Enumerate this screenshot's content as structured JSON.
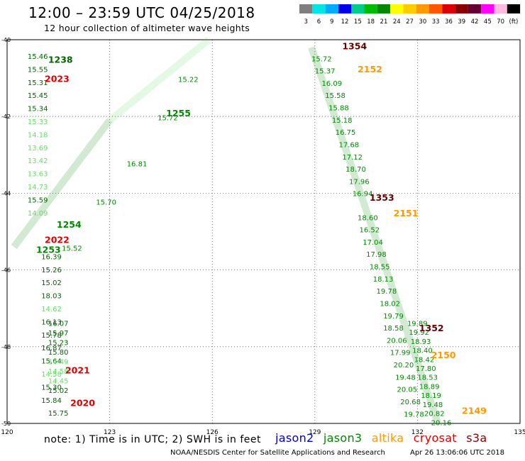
{
  "header": {
    "title": "12:00 – 23:59 UTC 04/25/2018",
    "subtitle": "12 hour collection of altimeter wave heights"
  },
  "colorbar": {
    "labels": [
      "3",
      "6",
      "9",
      "12",
      "15",
      "18",
      "21",
      "24",
      "27",
      "30",
      "33",
      "36",
      "39",
      "42",
      "45",
      "70",
      "(ft)"
    ],
    "colors": [
      "#7f7f7f",
      "#00e5e5",
      "#00aaff",
      "#0000ee",
      "#00cc88",
      "#00bb00",
      "#008800",
      "#ffff00",
      "#ffcc00",
      "#ff9900",
      "#ff5500",
      "#dd0000",
      "#880000",
      "#660033",
      "#ff00ff",
      "#ffbbdd",
      "#000000"
    ]
  },
  "footer": {
    "note": "note:  1) Time is in UTC; 2) SWH is in feet",
    "credit": "NOAA/NESDIS Center for Satellite Applications and Research",
    "timestamp": "Apr 26 13:06:06 UTC 2018"
  },
  "legend": [
    {
      "name": "jason2",
      "color": "#0000cc"
    },
    {
      "name": "jason3",
      "color": "#008800"
    },
    {
      "name": "altika",
      "color": "#ff9900"
    },
    {
      "name": "cryosat",
      "color": "#dd0000"
    },
    {
      "name": "s3a",
      "color": "#880000"
    }
  ],
  "chart_data": {
    "type": "scatter",
    "xlim": [
      120,
      135
    ],
    "ylim": [
      -50,
      -40
    ],
    "xticks": [
      "120",
      "123",
      "126",
      "129",
      "132",
      "135"
    ],
    "yticks": [
      "-40",
      "-42",
      "-44",
      "-46",
      "-48",
      "-50"
    ],
    "grid": true,
    "point_labels": [
      {
        "x": 120.6,
        "y": -40.5,
        "text": "15.46",
        "color": "#006600"
      },
      {
        "x": 120.6,
        "y": -40.84,
        "text": "15.55",
        "color": "#006600"
      },
      {
        "x": 120.6,
        "y": -41.18,
        "text": "15.31",
        "color": "#006600"
      },
      {
        "x": 120.6,
        "y": -41.52,
        "text": "15.45",
        "color": "#006600"
      },
      {
        "x": 120.6,
        "y": -41.86,
        "text": "15.34",
        "color": "#006600"
      },
      {
        "x": 120.6,
        "y": -42.2,
        "text": "15.33",
        "color": "#66dd66"
      },
      {
        "x": 120.6,
        "y": -42.54,
        "text": "14.18",
        "color": "#66dd66"
      },
      {
        "x": 120.6,
        "y": -42.88,
        "text": "13.69",
        "color": "#66dd66"
      },
      {
        "x": 120.6,
        "y": -43.22,
        "text": "13.42",
        "color": "#66dd66"
      },
      {
        "x": 120.6,
        "y": -43.56,
        "text": "13.63",
        "color": "#66dd66"
      },
      {
        "x": 120.6,
        "y": -43.9,
        "text": "14.73",
        "color": "#66dd66"
      },
      {
        "x": 120.6,
        "y": -44.24,
        "text": "15.59",
        "color": "#006600"
      },
      {
        "x": 120.6,
        "y": -44.58,
        "text": "14.09",
        "color": "#66dd66"
      },
      {
        "x": 121.0,
        "y": -45.72,
        "text": "16.39",
        "color": "#006600"
      },
      {
        "x": 121.0,
        "y": -46.06,
        "text": "15.26",
        "color": "#006600"
      },
      {
        "x": 121.0,
        "y": -46.4,
        "text": "15.02",
        "color": "#006600"
      },
      {
        "x": 121.0,
        "y": -46.74,
        "text": "18.03",
        "color": "#006600"
      },
      {
        "x": 121.0,
        "y": -47.08,
        "text": "14.62",
        "color": "#66dd66"
      },
      {
        "x": 121.0,
        "y": -47.42,
        "text": "16.13",
        "color": "#006600"
      },
      {
        "x": 121.0,
        "y": -47.76,
        "text": "15.78",
        "color": "#006600"
      },
      {
        "x": 121.0,
        "y": -48.1,
        "text": "16.87",
        "color": "#006600"
      },
      {
        "x": 121.0,
        "y": -48.44,
        "text": "15.64",
        "color": "#006600"
      },
      {
        "x": 121.0,
        "y": -48.78,
        "text": "14.58",
        "color": "#66dd66"
      },
      {
        "x": 121.0,
        "y": -49.12,
        "text": "15.30",
        "color": "#006600"
      },
      {
        "x": 121.0,
        "y": -49.46,
        "text": "15.84",
        "color": "#006600"
      },
      {
        "x": 121.2,
        "y": -49.8,
        "text": "15.75",
        "color": "#006600"
      },
      {
        "x": 121.2,
        "y": -50.14,
        "text": "16.07",
        "color": "#006600"
      },
      {
        "x": 121.2,
        "y": -50.48,
        "text": "15.97",
        "color": "#006600"
      },
      {
        "x": 121.2,
        "y": -50.82,
        "text": "15.23",
        "color": "#006600"
      },
      {
        "x": 121.2,
        "y": -51.16,
        "text": "15.80",
        "color": "#006600"
      },
      {
        "x": 121.2,
        "y": -51.5,
        "text": "14.49",
        "color": "#66dd66"
      },
      {
        "x": 121.2,
        "y": -51.84,
        "text": "14.58",
        "color": "#66dd66"
      },
      {
        "x": 121.2,
        "y": -52.18,
        "text": "14.45",
        "color": "#66dd66"
      },
      {
        "x": 121.2,
        "y": -52.52,
        "text": "15.02",
        "color": "#006600"
      },
      {
        "x": 125.0,
        "y": -41.1,
        "text": "15.22",
        "color": "#008800"
      },
      {
        "x": 124.4,
        "y": -42.1,
        "text": "15.72",
        "color": "#008800"
      },
      {
        "x": 123.5,
        "y": -43.3,
        "text": "16.81",
        "color": "#008800"
      },
      {
        "x": 122.6,
        "y": -44.3,
        "text": "15.70",
        "color": "#008800"
      },
      {
        "x": 121.6,
        "y": -45.5,
        "text": "15.52",
        "color": "#008800"
      },
      {
        "x": 128.9,
        "y": -40.56,
        "text": "15.72",
        "color": "#008800"
      },
      {
        "x": 129.0,
        "y": -40.88,
        "text": "15.37",
        "color": "#008800"
      },
      {
        "x": 129.2,
        "y": -41.2,
        "text": "16.09",
        "color": "#008800"
      },
      {
        "x": 129.3,
        "y": -41.52,
        "text": "15.58",
        "color": "#008800"
      },
      {
        "x": 129.4,
        "y": -41.84,
        "text": "15.88",
        "color": "#008800"
      },
      {
        "x": 129.5,
        "y": -42.16,
        "text": "15.18",
        "color": "#008800"
      },
      {
        "x": 129.6,
        "y": -42.48,
        "text": "16.75",
        "color": "#008800"
      },
      {
        "x": 129.7,
        "y": -42.8,
        "text": "17.68",
        "color": "#008800"
      },
      {
        "x": 129.8,
        "y": -43.12,
        "text": "17.12",
        "color": "#008800"
      },
      {
        "x": 129.9,
        "y": -43.44,
        "text": "18.70",
        "color": "#008800"
      },
      {
        "x": 130.0,
        "y": -43.76,
        "text": "17.96",
        "color": "#008800"
      },
      {
        "x": 130.1,
        "y": -44.08,
        "text": "16.94",
        "color": "#008800"
      },
      {
        "x": 130.25,
        "y": -44.7,
        "text": "18.60",
        "color": "#008800"
      },
      {
        "x": 130.3,
        "y": -45.02,
        "text": "16.52",
        "color": "#008800"
      },
      {
        "x": 130.4,
        "y": -45.34,
        "text": "17.04",
        "color": "#008800"
      },
      {
        "x": 130.5,
        "y": -45.66,
        "text": "17.98",
        "color": "#008800"
      },
      {
        "x": 130.6,
        "y": -45.98,
        "text": "18.55",
        "color": "#008800"
      },
      {
        "x": 130.7,
        "y": -46.3,
        "text": "18.13",
        "color": "#008800"
      },
      {
        "x": 130.8,
        "y": -46.62,
        "text": "19.78",
        "color": "#008800"
      },
      {
        "x": 130.9,
        "y": -46.94,
        "text": "18.02",
        "color": "#008800"
      },
      {
        "x": 131.0,
        "y": -47.26,
        "text": "19.79",
        "color": "#008800"
      },
      {
        "x": 131.0,
        "y": -47.58,
        "text": "18.58",
        "color": "#008800"
      },
      {
        "x": 131.1,
        "y": -47.9,
        "text": "20.06",
        "color": "#008800"
      },
      {
        "x": 131.2,
        "y": -48.22,
        "text": "17.99",
        "color": "#008800"
      },
      {
        "x": 131.3,
        "y": -48.54,
        "text": "20.20",
        "color": "#008800"
      },
      {
        "x": 131.35,
        "y": -48.86,
        "text": "19.48",
        "color": "#008800"
      },
      {
        "x": 131.4,
        "y": -49.18,
        "text": "20.05",
        "color": "#008800"
      },
      {
        "x": 131.5,
        "y": -49.5,
        "text": "20.68",
        "color": "#008800"
      },
      {
        "x": 131.6,
        "y": -49.82,
        "text": "19.78",
        "color": "#008800"
      },
      {
        "x": 131.7,
        "y": -50.14,
        "text": "19.89",
        "color": "#008800"
      },
      {
        "x": 131.75,
        "y": -50.46,
        "text": "19.92",
        "color": "#008800"
      },
      {
        "x": 131.8,
        "y": -50.78,
        "text": "18.93",
        "color": "#008800"
      },
      {
        "x": 131.85,
        "y": -51.1,
        "text": "18.40",
        "color": "#008800"
      },
      {
        "x": 131.9,
        "y": -51.42,
        "text": "18.42",
        "color": "#008800"
      },
      {
        "x": 131.95,
        "y": -51.74,
        "text": "17.80",
        "color": "#008800"
      },
      {
        "x": 132.0,
        "y": -52.06,
        "text": "18.53",
        "color": "#008800"
      },
      {
        "x": 132.05,
        "y": -52.38,
        "text": "18.89",
        "color": "#008800"
      },
      {
        "x": 132.1,
        "y": -52.7,
        "text": "18.19",
        "color": "#008800"
      },
      {
        "x": 132.15,
        "y": -53.02,
        "text": "19.48",
        "color": "#008800"
      },
      {
        "x": 132.2,
        "y": -53.34,
        "text": "20.82",
        "color": "#008800"
      },
      {
        "x": 132.4,
        "y": -53.66,
        "text": "20.16",
        "color": "#008800"
      }
    ],
    "pass_labels": [
      {
        "x": 121.2,
        "y": -40.6,
        "text": "1238",
        "color": "#006600"
      },
      {
        "x": 121.1,
        "y": -41.1,
        "text": "2023",
        "color": "#dd0000"
      },
      {
        "x": 124.65,
        "y": -42.0,
        "text": "1255",
        "color": "#008800"
      },
      {
        "x": 121.45,
        "y": -44.9,
        "text": "1254",
        "color": "#008800"
      },
      {
        "x": 121.1,
        "y": -45.3,
        "text": "2022",
        "color": "#dd0000"
      },
      {
        "x": 120.85,
        "y": -45.55,
        "text": "1253",
        "color": "#008800"
      },
      {
        "x": 129.8,
        "y": -40.25,
        "text": "1354",
        "color": "#660000"
      },
      {
        "x": 130.25,
        "y": -40.85,
        "text": "2152",
        "color": "#ff9900"
      },
      {
        "x": 130.6,
        "y": -44.2,
        "text": "1353",
        "color": "#660000"
      },
      {
        "x": 131.3,
        "y": -44.6,
        "text": "2151",
        "color": "#ff9900"
      },
      {
        "x": 132.05,
        "y": -47.6,
        "text": "1352",
        "color": "#660000"
      },
      {
        "x": 132.4,
        "y": -48.3,
        "text": "2150",
        "color": "#ff9900"
      },
      {
        "x": 121.7,
        "y": -48.7,
        "text": "2021",
        "color": "#dd0000"
      },
      {
        "x": 121.85,
        "y": -49.55,
        "text": "2020",
        "color": "#dd0000"
      },
      {
        "x": 133.3,
        "y": -49.75,
        "text": "2149",
        "color": "#ff9900"
      }
    ]
  }
}
